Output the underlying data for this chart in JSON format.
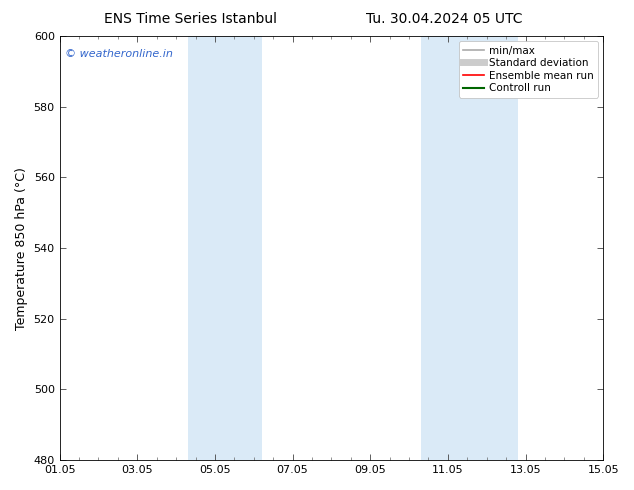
{
  "title_left": "ENS Time Series Istanbul",
  "title_right": "Tu. 30.04.2024 05 UTC",
  "ylabel": "Temperature 850 hPa (°C)",
  "ylim": [
    480,
    600
  ],
  "yticks": [
    480,
    500,
    520,
    540,
    560,
    580,
    600
  ],
  "bg_color": "#ffffff",
  "plot_bg_color": "#ffffff",
  "shaded_bands": [
    {
      "x_start": 4.3,
      "x_end": 6.2,
      "color": "#daeaf7"
    },
    {
      "x_start": 10.3,
      "x_end": 12.8,
      "color": "#daeaf7"
    }
  ],
  "watermark_text": "© weatheronline.in",
  "watermark_color": "#3366cc",
  "legend_entries": [
    {
      "label": "min/max",
      "color": "#aaaaaa",
      "lw": 1.2,
      "style": "solid"
    },
    {
      "label": "Standard deviation",
      "color": "#cccccc",
      "lw": 5,
      "style": "solid"
    },
    {
      "label": "Ensemble mean run",
      "color": "#ff0000",
      "lw": 1.2,
      "style": "solid"
    },
    {
      "label": "Controll run",
      "color": "#006600",
      "lw": 1.5,
      "style": "solid"
    }
  ],
  "x_numeric_start": 1,
  "x_numeric_end": 15,
  "xtick_major_positions": [
    1,
    3,
    5,
    7,
    9,
    11,
    13,
    15
  ],
  "xtick_labels": [
    "01.05",
    "03.05",
    "05.05",
    "07.05",
    "09.05",
    "11.05",
    "13.05",
    "15.05"
  ],
  "xtick_minor_step": 0.5,
  "title_fontsize": 10,
  "tick_fontsize": 8,
  "ylabel_fontsize": 9,
  "watermark_fontsize": 8,
  "legend_fontsize": 7.5
}
